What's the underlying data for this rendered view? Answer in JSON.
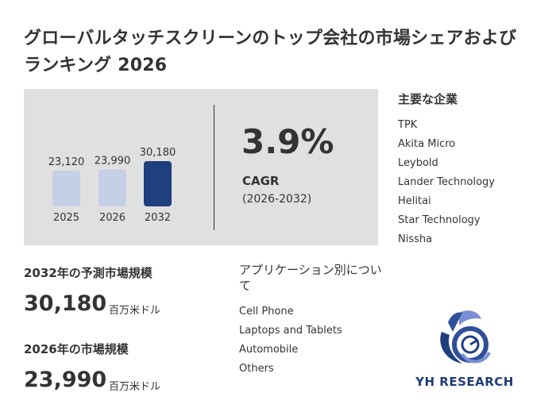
{
  "title": "グローバルタッチスクリーンのトップ会社の市場シェアおよびランキング 2026",
  "chart_data": {
    "type": "bar",
    "categories": [
      "2025",
      "2026",
      "2032"
    ],
    "values": [
      23120,
      23990,
      30180
    ],
    "value_labels": [
      "23,120",
      "23,990",
      "30,180"
    ],
    "colors": [
      "#c5d0e6",
      "#c5d0e6",
      "#1f3f7f"
    ]
  },
  "cagr": {
    "value": "3.9%",
    "label": "CAGR",
    "period": "(2026-2032)"
  },
  "companies": {
    "heading": "主要な企業",
    "items": [
      "TPK",
      "Akita Micro",
      "Leybold",
      "Lander Technology",
      "Helitai",
      "Star Technology",
      "Nissha"
    ]
  },
  "forecast": {
    "label": "2032年の予測市場規模",
    "value": "30,180",
    "unit": "百万米ドル"
  },
  "current": {
    "label": "2026年の市場規模",
    "value": "23,990",
    "unit": "百万米ドル"
  },
  "applications": {
    "heading": "アプリケーション別について",
    "items": [
      "Cell Phone",
      "Laptops and Tablets",
      "Automobile",
      "Others"
    ]
  },
  "logo": {
    "text": "YH RESEARCH"
  },
  "colors": {
    "panel": "#e0e0e0",
    "bar_light": "#c5d0e6",
    "bar_dark": "#1f3f7f",
    "text": "#333333",
    "brand": "#1e3a78"
  }
}
